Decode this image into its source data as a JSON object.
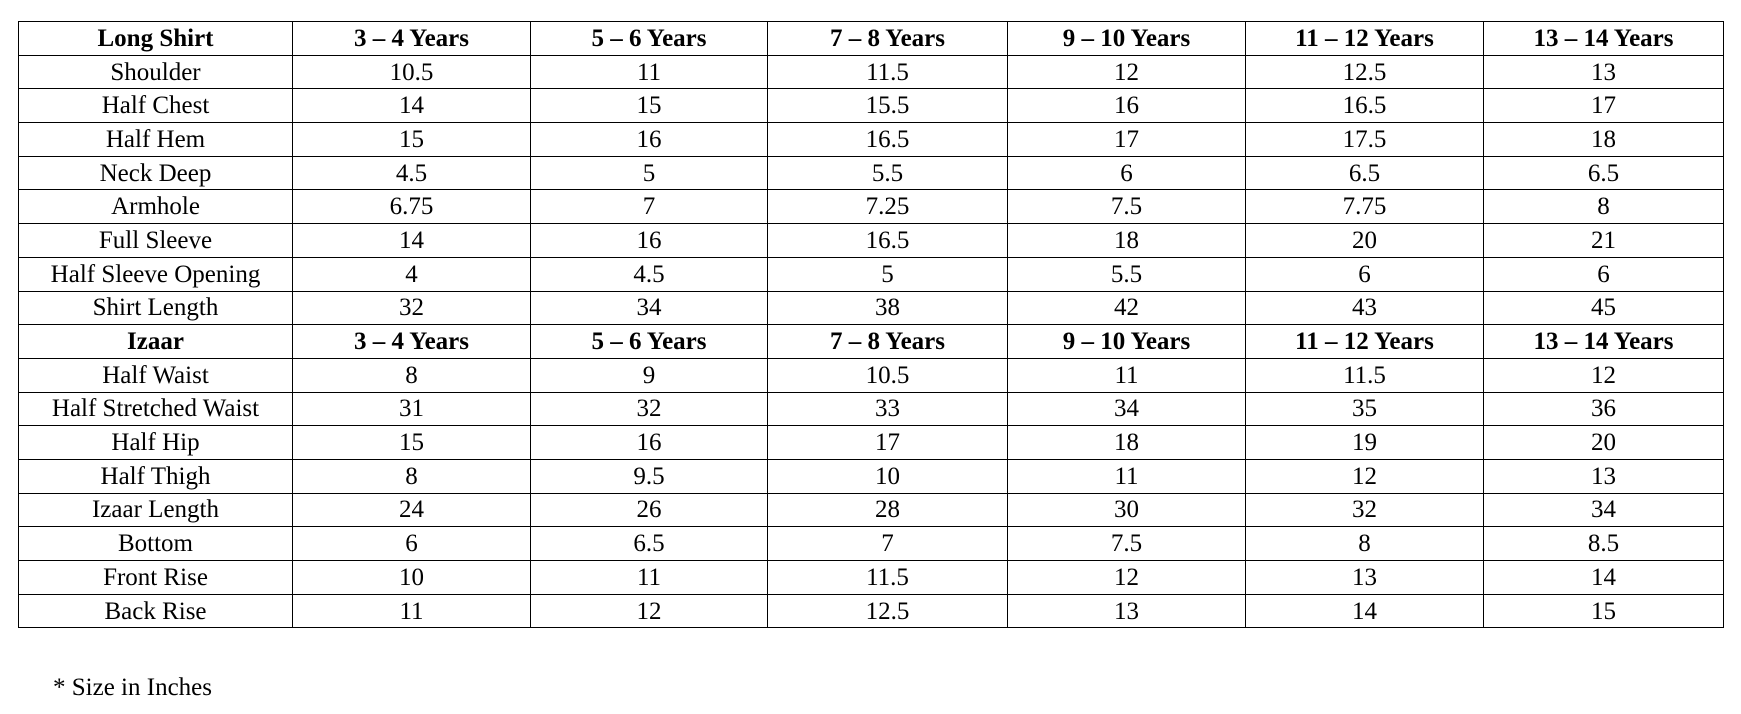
{
  "table": {
    "sections": [
      {
        "header": [
          "Long Shirt",
          "3 – 4 Years",
          "5 – 6 Years",
          "7 – 8 Years",
          "9 – 10 Years",
          "11 – 12 Years",
          "13 – 14 Years"
        ],
        "rows": [
          [
            "Shoulder",
            10.5,
            11,
            11.5,
            12,
            12.5,
            13
          ],
          [
            "Half Chest",
            14,
            15,
            15.5,
            16,
            16.5,
            17
          ],
          [
            "Half Hem",
            15,
            16,
            16.5,
            17,
            17.5,
            18
          ],
          [
            "Neck Deep",
            4.5,
            5,
            5.5,
            6,
            6.5,
            6.5
          ],
          [
            "Armhole",
            6.75,
            7,
            7.25,
            7.5,
            7.75,
            8
          ],
          [
            "Full Sleeve",
            14,
            16,
            16.5,
            18,
            20,
            21
          ],
          [
            "Half Sleeve Opening",
            4,
            4.5,
            5,
            5.5,
            6,
            6
          ],
          [
            "Shirt Length",
            32,
            34,
            38,
            42,
            43,
            45
          ]
        ]
      },
      {
        "header": [
          "Izaar",
          "3 – 4 Years",
          "5 – 6 Years",
          "7 – 8 Years",
          "9 – 10 Years",
          "11 – 12 Years",
          "13 – 14 Years"
        ],
        "rows": [
          [
            "Half Waist",
            8,
            9,
            10.5,
            11,
            11.5,
            12
          ],
          [
            "Half Stretched Waist",
            31,
            32,
            33,
            34,
            35,
            36
          ],
          [
            "Half Hip",
            15,
            16,
            17,
            18,
            19,
            20
          ],
          [
            "Half Thigh",
            8,
            9.5,
            10,
            11,
            12,
            13
          ],
          [
            "Izaar Length",
            24,
            26,
            28,
            30,
            32,
            34
          ],
          [
            "Bottom",
            6,
            6.5,
            7,
            7.5,
            8,
            8.5
          ],
          [
            "Front Rise",
            10,
            11,
            11.5,
            12,
            13,
            14
          ],
          [
            "Back Rise",
            11,
            12,
            12.5,
            13,
            14,
            15
          ]
        ]
      }
    ]
  },
  "footnote": "* Size in Inches"
}
